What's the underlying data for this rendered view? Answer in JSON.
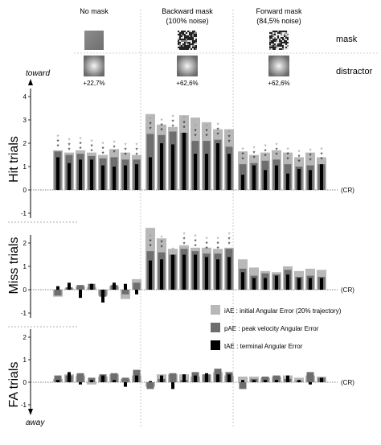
{
  "figure": {
    "direction_top": "toward",
    "direction_bottom": "away",
    "row_labels": {
      "mask": "mask",
      "distractor": "distractor"
    },
    "conditions": [
      {
        "name": "No mask",
        "sub": "",
        "distractor_value": "+22,7%",
        "mask_texture": "uniform"
      },
      {
        "name": "Backward mask",
        "sub": "(100% noise)",
        "distractor_value": "+62,6%",
        "mask_texture": "noise-high"
      },
      {
        "name": "Forward mask",
        "sub": "(84,5% noise)",
        "distractor_value": "+62,6%",
        "mask_texture": "noise-med"
      }
    ],
    "cr_label": "(CR)",
    "legend": [
      {
        "key": "iAE",
        "label": "iAE : initial Angular Error (20% trajectory)",
        "color": "#b8b8b8"
      },
      {
        "key": "pAE",
        "label": "pAE : peak velocity Angular Error",
        "color": "#6e6e6e"
      },
      {
        "key": "tAE",
        "label": "tAE : terminal Angular Error",
        "color": "#000000"
      }
    ],
    "colors": {
      "iAE": "#b8b8b8",
      "pAE": "#6e6e6e",
      "tAE": "#000000",
      "star_light": "#9a9a9a",
      "star_dark": "#111111"
    }
  },
  "chart_data": [
    {
      "type": "bar",
      "panel": "Hit trials",
      "ylim": [
        -1,
        4
      ],
      "yticks": [
        "-1",
        "0",
        "1",
        "2",
        "3",
        "4"
      ],
      "groups": [
        "No mask",
        "Backward mask (100% noise)",
        "Forward mask (84,5% noise)"
      ],
      "series": [
        {
          "name": "iAE",
          "values": [
            [
              1.7,
              1.6,
              1.7,
              1.6,
              1.5,
              1.75,
              1.6,
              1.5
            ],
            [
              3.25,
              2.8,
              2.7,
              3.2,
              3.1,
              2.9,
              2.6,
              2.6
            ],
            [
              1.65,
              1.5,
              1.6,
              1.7,
              1.6,
              1.4,
              1.6,
              1.4
            ]
          ]
        },
        {
          "name": "pAE",
          "values": [
            [
              1.65,
              1.5,
              1.55,
              1.45,
              1.35,
              1.4,
              1.3,
              1.3
            ],
            [
              2.4,
              2.35,
              2.5,
              2.45,
              2.1,
              2.1,
              2.15,
              1.85
            ],
            [
              1.1,
              1.15,
              1.25,
              1.3,
              1.1,
              1.0,
              1.05,
              1.1
            ]
          ]
        },
        {
          "name": "tAE",
          "values": [
            [
              1.4,
              1.15,
              1.3,
              1.3,
              1.05,
              1.0,
              1.05,
              1.1
            ],
            [
              1.4,
              2.0,
              1.95,
              2.45,
              1.55,
              1.55,
              2.0,
              1.55
            ],
            [
              0.65,
              1.05,
              0.85,
              1.05,
              0.7,
              0.9,
              0.85,
              1.1
            ]
          ]
        }
      ],
      "significance": [
        [
          3,
          3,
          3,
          3,
          3,
          3,
          3,
          3
        ],
        [
          3,
          3,
          3,
          3,
          3,
          3,
          3,
          3
        ],
        [
          3,
          3,
          3,
          3,
          3,
          3,
          3,
          3
        ]
      ]
    },
    {
      "type": "bar",
      "panel": "Miss trials",
      "ylim": [
        -1,
        2
      ],
      "yticks": [
        "-1",
        "0",
        "1",
        "2"
      ],
      "groups": [
        "No mask",
        "Backward mask (100% noise)",
        "Forward mask (84,5% noise)"
      ],
      "series": [
        {
          "name": "iAE",
          "values": [
            [
              -0.3,
              0.05,
              0.15,
              0.1,
              -0.25,
              0.15,
              -0.4,
              0.45
            ],
            [
              2.65,
              2.2,
              1.75,
              1.9,
              1.8,
              1.8,
              1.75,
              1.8
            ],
            [
              1.3,
              0.95,
              0.8,
              0.75,
              1.0,
              0.8,
              0.9,
              0.85
            ]
          ]
        },
        {
          "name": "pAE",
          "values": [
            [
              -0.25,
              0.1,
              0.2,
              0.25,
              -0.3,
              0.2,
              -0.2,
              0.3
            ],
            [
              1.65,
              1.6,
              1.5,
              1.75,
              1.65,
              1.55,
              1.55,
              1.75
            ],
            [
              0.9,
              0.6,
              0.7,
              0.65,
              0.85,
              0.55,
              0.6,
              0.55
            ]
          ]
        },
        {
          "name": "tAE",
          "values": [
            [
              0.15,
              0.3,
              -0.35,
              0.25,
              -0.55,
              0.3,
              0.25,
              -0.2
            ],
            [
              1.25,
              1.3,
              1.5,
              1.5,
              1.5,
              1.4,
              1.3,
              1.4
            ],
            [
              0.75,
              0.5,
              0.5,
              0.6,
              0.65,
              0.5,
              0.5,
              0.5
            ]
          ]
        }
      ],
      "significance": [
        [
          0,
          0,
          0,
          0,
          0,
          0,
          0,
          0
        ],
        [
          3,
          3,
          1,
          3,
          3,
          3,
          3,
          3
        ],
        [
          0,
          0,
          0,
          0,
          0,
          0,
          0,
          0
        ]
      ]
    },
    {
      "type": "bar",
      "panel": "FA trials",
      "ylim": [
        -1,
        2
      ],
      "yticks": [
        "-1",
        "0",
        "1",
        "2"
      ],
      "groups": [
        "No mask",
        "Backward mask (100% noise)",
        "Forward mask (84,5% noise)"
      ],
      "series": [
        {
          "name": "iAE",
          "values": [
            [
              0.15,
              0.35,
              0.3,
              -0.1,
              0.25,
              0.35,
              0.15,
              0.3
            ],
            [
              -0.2,
              0.35,
              0.35,
              0.35,
              0.25,
              0.35,
              0.45,
              0.3
            ],
            [
              0.25,
              0.25,
              0.2,
              0.25,
              0.3,
              0.2,
              0.3,
              0.25
            ]
          ]
        },
        {
          "name": "pAE",
          "values": [
            [
              0.3,
              0.3,
              0.4,
              0.2,
              0.35,
              0.4,
              0.2,
              0.55
            ],
            [
              -0.3,
              0.15,
              0.4,
              0.1,
              0.45,
              0.35,
              0.6,
              0.45
            ],
            [
              -0.3,
              0.15,
              0.25,
              0.3,
              0.15,
              0.05,
              0.45,
              0.2
            ]
          ]
        },
        {
          "name": "tAE",
          "values": [
            [
              0.1,
              0.45,
              -0.1,
              0.1,
              0.3,
              0.1,
              -0.2,
              0.3
            ],
            [
              0.05,
              0.3,
              -0.3,
              0.35,
              0.3,
              0.4,
              0.35,
              0.35
            ],
            [
              0.1,
              0.1,
              0.1,
              0.1,
              0.3,
              0.1,
              -0.1,
              0.2
            ]
          ]
        }
      ],
      "significance": [
        [
          0,
          0,
          0,
          0,
          0,
          0,
          0,
          0
        ],
        [
          0,
          0,
          0,
          0,
          0,
          0,
          0,
          0
        ],
        [
          0,
          0,
          0,
          0,
          0,
          0,
          0,
          0
        ]
      ]
    }
  ]
}
